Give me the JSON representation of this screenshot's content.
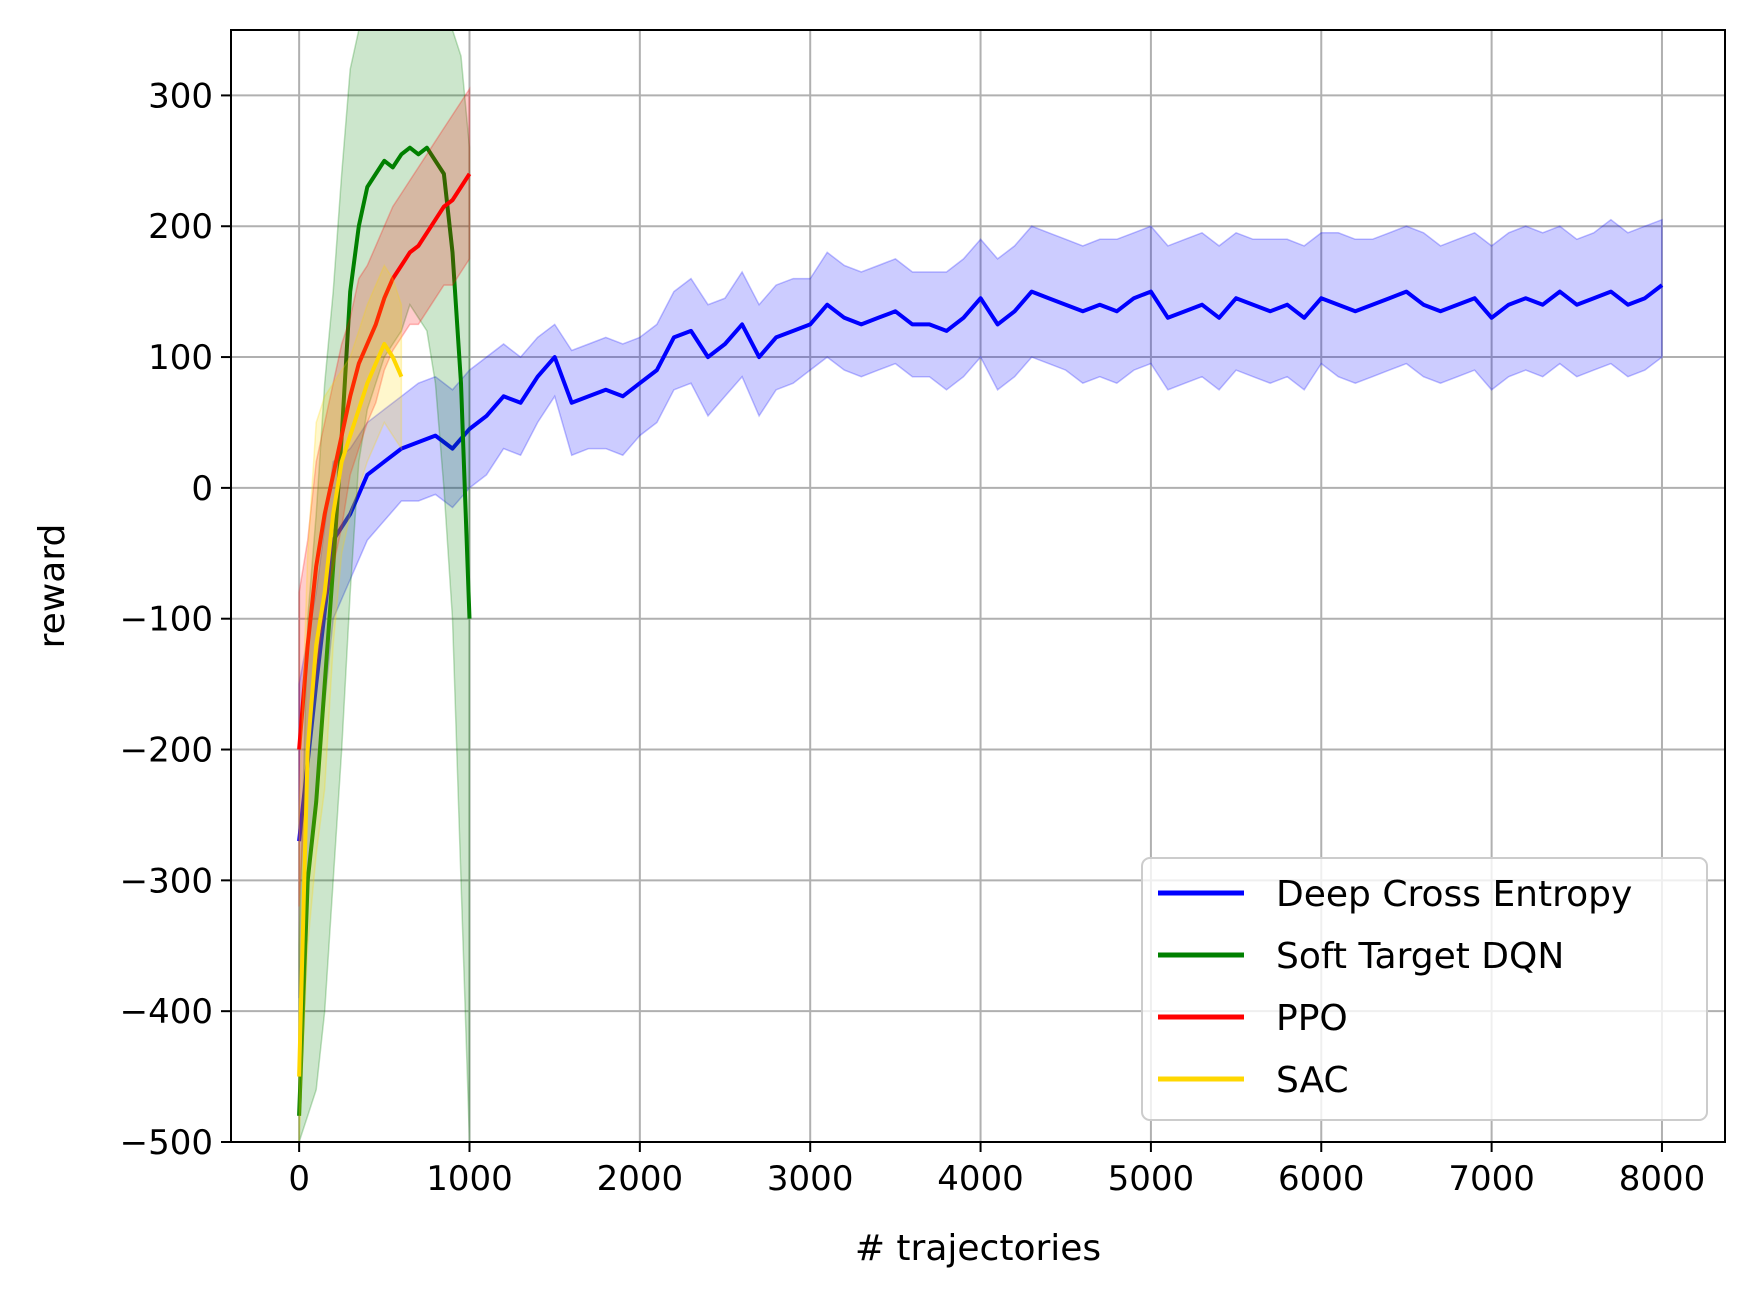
{
  "chart_data": {
    "type": "line",
    "title": "",
    "xlabel": "# trajectories",
    "ylabel": "reward",
    "xlim": [
      -400,
      8370
    ],
    "ylim": [
      -500,
      350
    ],
    "xticks": [
      0,
      1000,
      2000,
      3000,
      4000,
      5000,
      6000,
      7000,
      8000
    ],
    "yticks": [
      -500,
      -400,
      -300,
      -200,
      -100,
      0,
      100,
      200,
      300
    ],
    "xtick_labels": [
      "0",
      "1000",
      "2000",
      "3000",
      "4000",
      "5000",
      "6000",
      "7000",
      "8000"
    ],
    "ytick_labels": [
      "−500",
      "−400",
      "−300",
      "−200",
      "−100",
      "0",
      "100",
      "200",
      "300"
    ],
    "grid": true,
    "legend_position": "bottom-right",
    "series": [
      {
        "name": "Deep Cross Entropy",
        "color": "#0000ff",
        "band_opacity": 0.2,
        "x": [
          0,
          100,
          200,
          300,
          400,
          500,
          600,
          700,
          800,
          900,
          1000,
          1100,
          1200,
          1300,
          1400,
          1500,
          1600,
          1700,
          1800,
          1900,
          2000,
          2100,
          2200,
          2300,
          2400,
          2500,
          2600,
          2700,
          2800,
          2900,
          3000,
          3100,
          3200,
          3300,
          3400,
          3500,
          3600,
          3700,
          3800,
          3900,
          4000,
          4100,
          4200,
          4300,
          4400,
          4500,
          4600,
          4700,
          4800,
          4900,
          5000,
          5100,
          5200,
          5300,
          5400,
          5500,
          5600,
          5700,
          5800,
          5900,
          6000,
          6100,
          6200,
          6300,
          6400,
          6500,
          6600,
          6700,
          6800,
          6900,
          7000,
          7100,
          7200,
          7300,
          7400,
          7500,
          7600,
          7700,
          7800,
          7900,
          8000
        ],
        "y": [
          -270,
          -150,
          -40,
          -20,
          10,
          20,
          30,
          35,
          40,
          30,
          45,
          55,
          70,
          65,
          85,
          100,
          65,
          70,
          75,
          70,
          80,
          90,
          115,
          120,
          100,
          110,
          125,
          100,
          115,
          120,
          125,
          140,
          130,
          125,
          130,
          135,
          125,
          125,
          120,
          130,
          145,
          125,
          135,
          150,
          145,
          140,
          135,
          140,
          135,
          145,
          150,
          130,
          135,
          140,
          130,
          145,
          140,
          135,
          140,
          130,
          145,
          140,
          135,
          140,
          145,
          150,
          140,
          135,
          140,
          145,
          130,
          140,
          145,
          140,
          150,
          140,
          145,
          150,
          140,
          145,
          155
        ],
        "upper": [
          -150,
          -80,
          20,
          30,
          50,
          60,
          70,
          80,
          85,
          75,
          90,
          100,
          110,
          100,
          115,
          125,
          105,
          110,
          115,
          110,
          115,
          125,
          150,
          160,
          140,
          145,
          165,
          140,
          155,
          160,
          160,
          180,
          170,
          165,
          170,
          175,
          165,
          165,
          165,
          175,
          190,
          175,
          185,
          200,
          195,
          190,
          185,
          190,
          190,
          195,
          200,
          185,
          190,
          195,
          185,
          195,
          190,
          190,
          190,
          185,
          195,
          195,
          190,
          190,
          195,
          200,
          195,
          185,
          190,
          195,
          185,
          195,
          200,
          195,
          200,
          190,
          195,
          205,
          195,
          200,
          205
        ],
        "lower": [
          -390,
          -230,
          -100,
          -70,
          -40,
          -25,
          -10,
          -10,
          -5,
          -15,
          0,
          10,
          30,
          25,
          50,
          70,
          25,
          30,
          30,
          25,
          40,
          50,
          75,
          80,
          55,
          70,
          85,
          55,
          75,
          80,
          90,
          100,
          90,
          85,
          90,
          95,
          85,
          85,
          75,
          85,
          100,
          75,
          85,
          100,
          95,
          90,
          80,
          85,
          80,
          90,
          95,
          75,
          80,
          85,
          75,
          90,
          85,
          80,
          85,
          75,
          95,
          85,
          80,
          85,
          90,
          95,
          85,
          80,
          85,
          90,
          75,
          85,
          90,
          85,
          95,
          85,
          90,
          95,
          85,
          90,
          100
        ]
      },
      {
        "name": "Soft Target DQN",
        "color": "#008000",
        "band_opacity": 0.2,
        "x": [
          0,
          50,
          100,
          150,
          200,
          250,
          300,
          350,
          400,
          450,
          500,
          550,
          600,
          650,
          700,
          750,
          800,
          850,
          900,
          950,
          1000
        ],
        "y": [
          -480,
          -300,
          -240,
          -150,
          -60,
          40,
          150,
          200,
          230,
          240,
          250,
          245,
          255,
          260,
          255,
          260,
          250,
          240,
          180,
          80,
          -100
        ],
        "upper": [
          -350,
          -100,
          -20,
          80,
          150,
          240,
          320,
          350,
          350,
          350,
          350,
          350,
          350,
          350,
          350,
          350,
          350,
          350,
          350,
          330,
          260
        ],
        "lower": [
          -500,
          -480,
          -460,
          -400,
          -300,
          -200,
          -80,
          20,
          60,
          80,
          100,
          110,
          120,
          140,
          130,
          120,
          80,
          0,
          -100,
          -300,
          -500
        ]
      },
      {
        "name": "PPO",
        "color": "#ff0000",
        "band_opacity": 0.2,
        "x": [
          0,
          50,
          100,
          150,
          200,
          250,
          300,
          350,
          400,
          450,
          500,
          550,
          600,
          650,
          700,
          750,
          800,
          850,
          900,
          950,
          1000
        ],
        "y": [
          -200,
          -120,
          -60,
          -20,
          10,
          40,
          70,
          95,
          110,
          125,
          145,
          160,
          170,
          180,
          185,
          195,
          205,
          215,
          220,
          230,
          240
        ],
        "upper": [
          -80,
          -40,
          20,
          50,
          80,
          110,
          130,
          160,
          170,
          185,
          200,
          215,
          225,
          235,
          245,
          255,
          265,
          275,
          285,
          295,
          305
        ],
        "lower": [
          -320,
          -200,
          -140,
          -90,
          -60,
          -30,
          10,
          30,
          50,
          65,
          90,
          105,
          115,
          125,
          125,
          135,
          145,
          155,
          155,
          165,
          175
        ]
      },
      {
        "name": "SAC",
        "color": "#ffd700",
        "band_opacity": 0.2,
        "x": [
          0,
          50,
          100,
          150,
          200,
          250,
          300,
          350,
          400,
          450,
          500,
          550,
          600
        ],
        "y": [
          -450,
          -200,
          -120,
          -80,
          -20,
          20,
          40,
          60,
          80,
          95,
          110,
          100,
          85
        ],
        "upper": [
          -250,
          -50,
          50,
          70,
          80,
          90,
          100,
          120,
          140,
          155,
          170,
          160,
          140
        ],
        "lower": [
          -500,
          -350,
          -280,
          -230,
          -120,
          -50,
          -20,
          0,
          20,
          35,
          50,
          40,
          30
        ]
      }
    ]
  }
}
